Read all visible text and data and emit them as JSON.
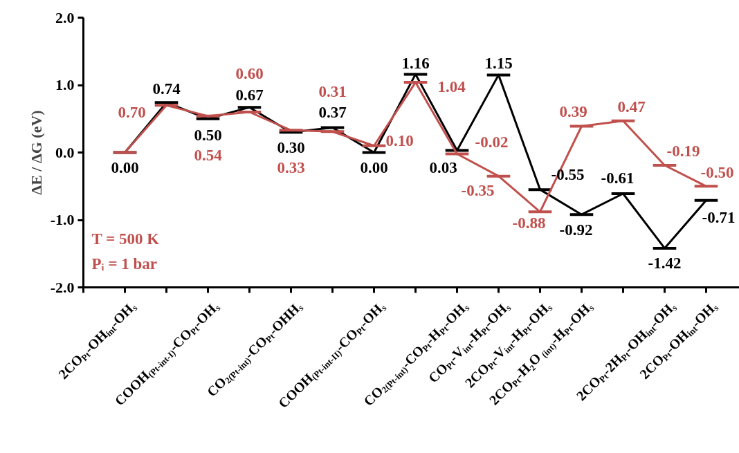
{
  "chart_data": {
    "type": "line",
    "ylabel": "ΔE / ΔG (eV)",
    "categories": [
      "2CO$_{Pt}$-OH$_{int}$-OH$_{s}$",
      null,
      "COOH$_{(Pt-int-I)}$-CO$_{Pt}$-OH$_{s}$",
      null,
      "CO$_{2(Pt-int)}$-CO$_{Pt}$-OHH$_{s}$",
      null,
      "COOH$_{(Pt-int-II)}$-CO$_{Pt}$-OH$_{s}$",
      null,
      "CO$_{2(Pt-int)}$-CO$_{Pt}$-H$_{Pt}$-OH$_{s}$",
      "CO$_{Pt}$-V$_{int}$-H$_{Pt}$-OH$_{s}$",
      "2CO$_{Pt}$-V$_{int}$-H$_{Pt}$-OH$_{s}$",
      "2CO$_{Pt}$-H₂O$_{(int)}$-H$_{Pt}$-OH$_{s}$",
      null,
      "2CO$_{Pt}$-2H$_{Pt}$-OH$_{int}$-OH$_{s}$",
      "2CO$_{Pt}$-OH$_{int}$-OH$_{s}$"
    ],
    "ylim": [
      -2,
      2
    ],
    "yticks": [
      {
        "value": -2,
        "label": "-2.0"
      },
      {
        "value": -1,
        "label": "-1.0"
      },
      {
        "value": 0,
        "label": "0.0"
      },
      {
        "value": 1,
        "label": "1.0"
      },
      {
        "value": 2,
        "label": "2.0"
      }
    ],
    "annotations": [
      "T = 500 K",
      "Pᵢ = 1 bar"
    ],
    "series": [
      {
        "color": "#000000",
        "values": [
          0.0,
          0.74,
          0.5,
          0.67,
          0.3,
          0.37,
          0.0,
          1.16,
          0.03,
          1.15,
          -0.55,
          -0.92,
          -0.61,
          -1.42,
          -0.71
        ],
        "value_labels": [
          "0.00",
          "0.74",
          "0.50",
          "0.67",
          "0.30",
          "0.37",
          "0.00",
          "1.16",
          "0.03",
          "1.15",
          "-0.55",
          "-0.92",
          "-0.61",
          "-1.42",
          "-0.71"
        ]
      },
      {
        "color": "#c0504d",
        "values": [
          0.0,
          0.7,
          0.54,
          0.6,
          0.33,
          0.31,
          0.1,
          1.04,
          -0.02,
          -0.35,
          -0.88,
          0.39,
          0.47,
          -0.19,
          -0.5
        ],
        "value_labels": [
          null,
          "0.70",
          "0.54",
          "0.60",
          "0.33",
          "0.31",
          "0.10",
          "1.04",
          "-0.02",
          "-0.35",
          "-0.88",
          "0.39",
          "0.47",
          "-0.19",
          "-0.50"
        ]
      }
    ]
  }
}
